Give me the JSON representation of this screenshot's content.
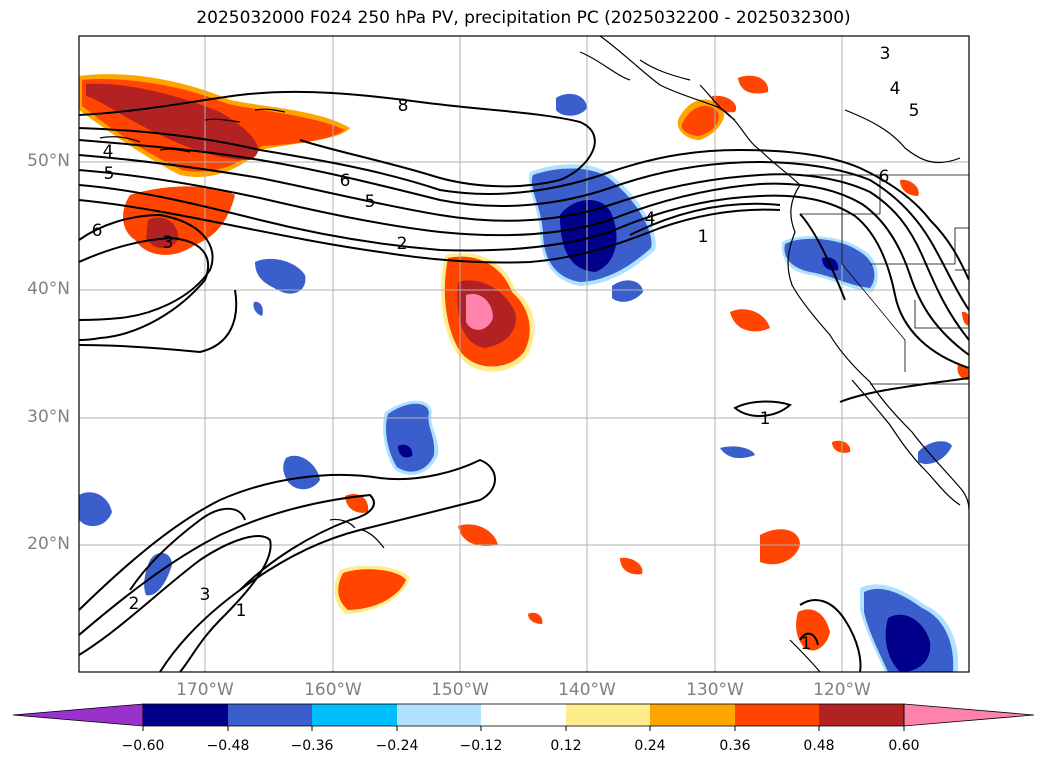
{
  "title": "2025032000 F024 250 hPa PV, precipitation PC (2025032200 - 2025032300)",
  "lat_labels": [
    "50°N",
    "40°N",
    "30°N",
    "20°N"
  ],
  "lon_labels": [
    "170°W",
    "160°W",
    "150°W",
    "140°W",
    "130°W",
    "120°W"
  ],
  "contour_labels": [
    "8",
    "4",
    "5",
    "6",
    "6",
    "5",
    "3",
    "2",
    "4",
    "1",
    "3",
    "4",
    "5",
    "6",
    "1",
    "2",
    "3",
    "1",
    "1"
  ],
  "colorbar": {
    "ticks": [
      "−0.60",
      "−0.48",
      "−0.36",
      "−0.24",
      "−0.12",
      "0.12",
      "0.24",
      "0.36",
      "0.48",
      "0.60"
    ],
    "colors": [
      "#9932cc",
      "#00008b",
      "#3a5fcd",
      "#00bfff",
      "#b0e2ff",
      "#ffffff",
      "#ffec8b",
      "#ffa500",
      "#ff4500",
      "#b22222",
      "#ff82ab"
    ]
  }
}
